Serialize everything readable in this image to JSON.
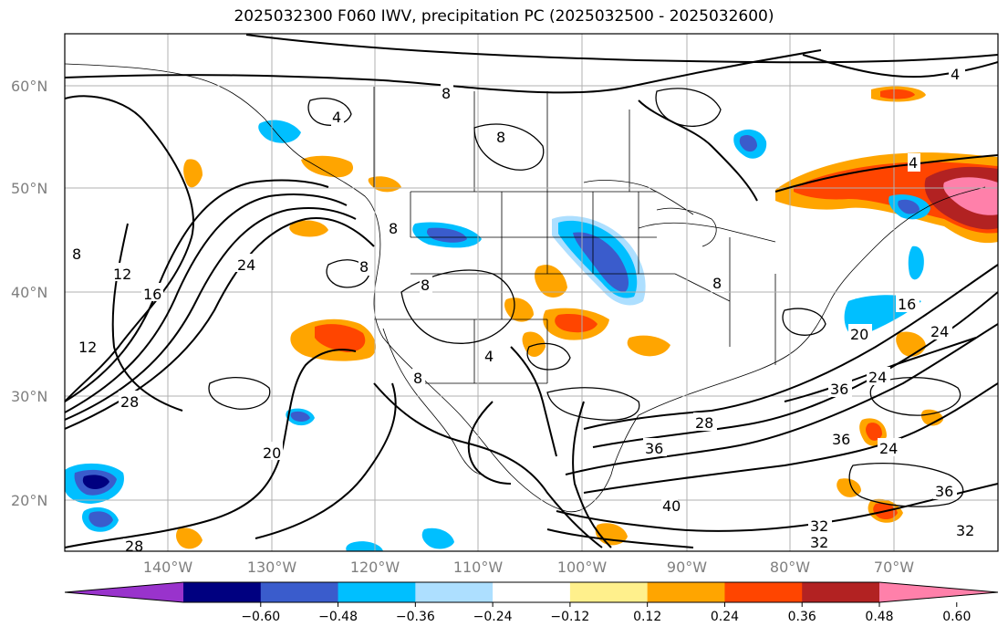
{
  "title": "2025032300 F060 IWV, precipitation PC (2025032500 - 2025032600)",
  "lat_labels": [
    "60°N",
    "50°N",
    "40°N",
    "30°N",
    "20°N"
  ],
  "lon_labels": [
    "140°W",
    "130°W",
    "120°W",
    "110°W",
    "100°W",
    "90°W",
    "80°W",
    "70°W"
  ],
  "colorbar": {
    "ticks": [
      "−0.60",
      "−0.48",
      "−0.36",
      "−0.24",
      "−0.12",
      "0.12",
      "0.24",
      "0.36",
      "0.48",
      "0.60"
    ],
    "colors": [
      "#9933cc",
      "#000080",
      "#3a5ccc",
      "#00bfff",
      "#addfff",
      "#ffffff",
      "#fff08c",
      "#ffa500",
      "#ff4500",
      "#b22222",
      "#ff80aa"
    ]
  },
  "contour_labels": [
    "4",
    "8",
    "8",
    "8",
    "8",
    "8",
    "8",
    "8",
    "8",
    "4",
    "4",
    "4",
    "12",
    "12",
    "16",
    "24",
    "28",
    "20",
    "28",
    "36",
    "40",
    "32",
    "32",
    "36",
    "24",
    "20",
    "24",
    "16",
    "36",
    "32",
    "36",
    "24",
    "28"
  ]
}
